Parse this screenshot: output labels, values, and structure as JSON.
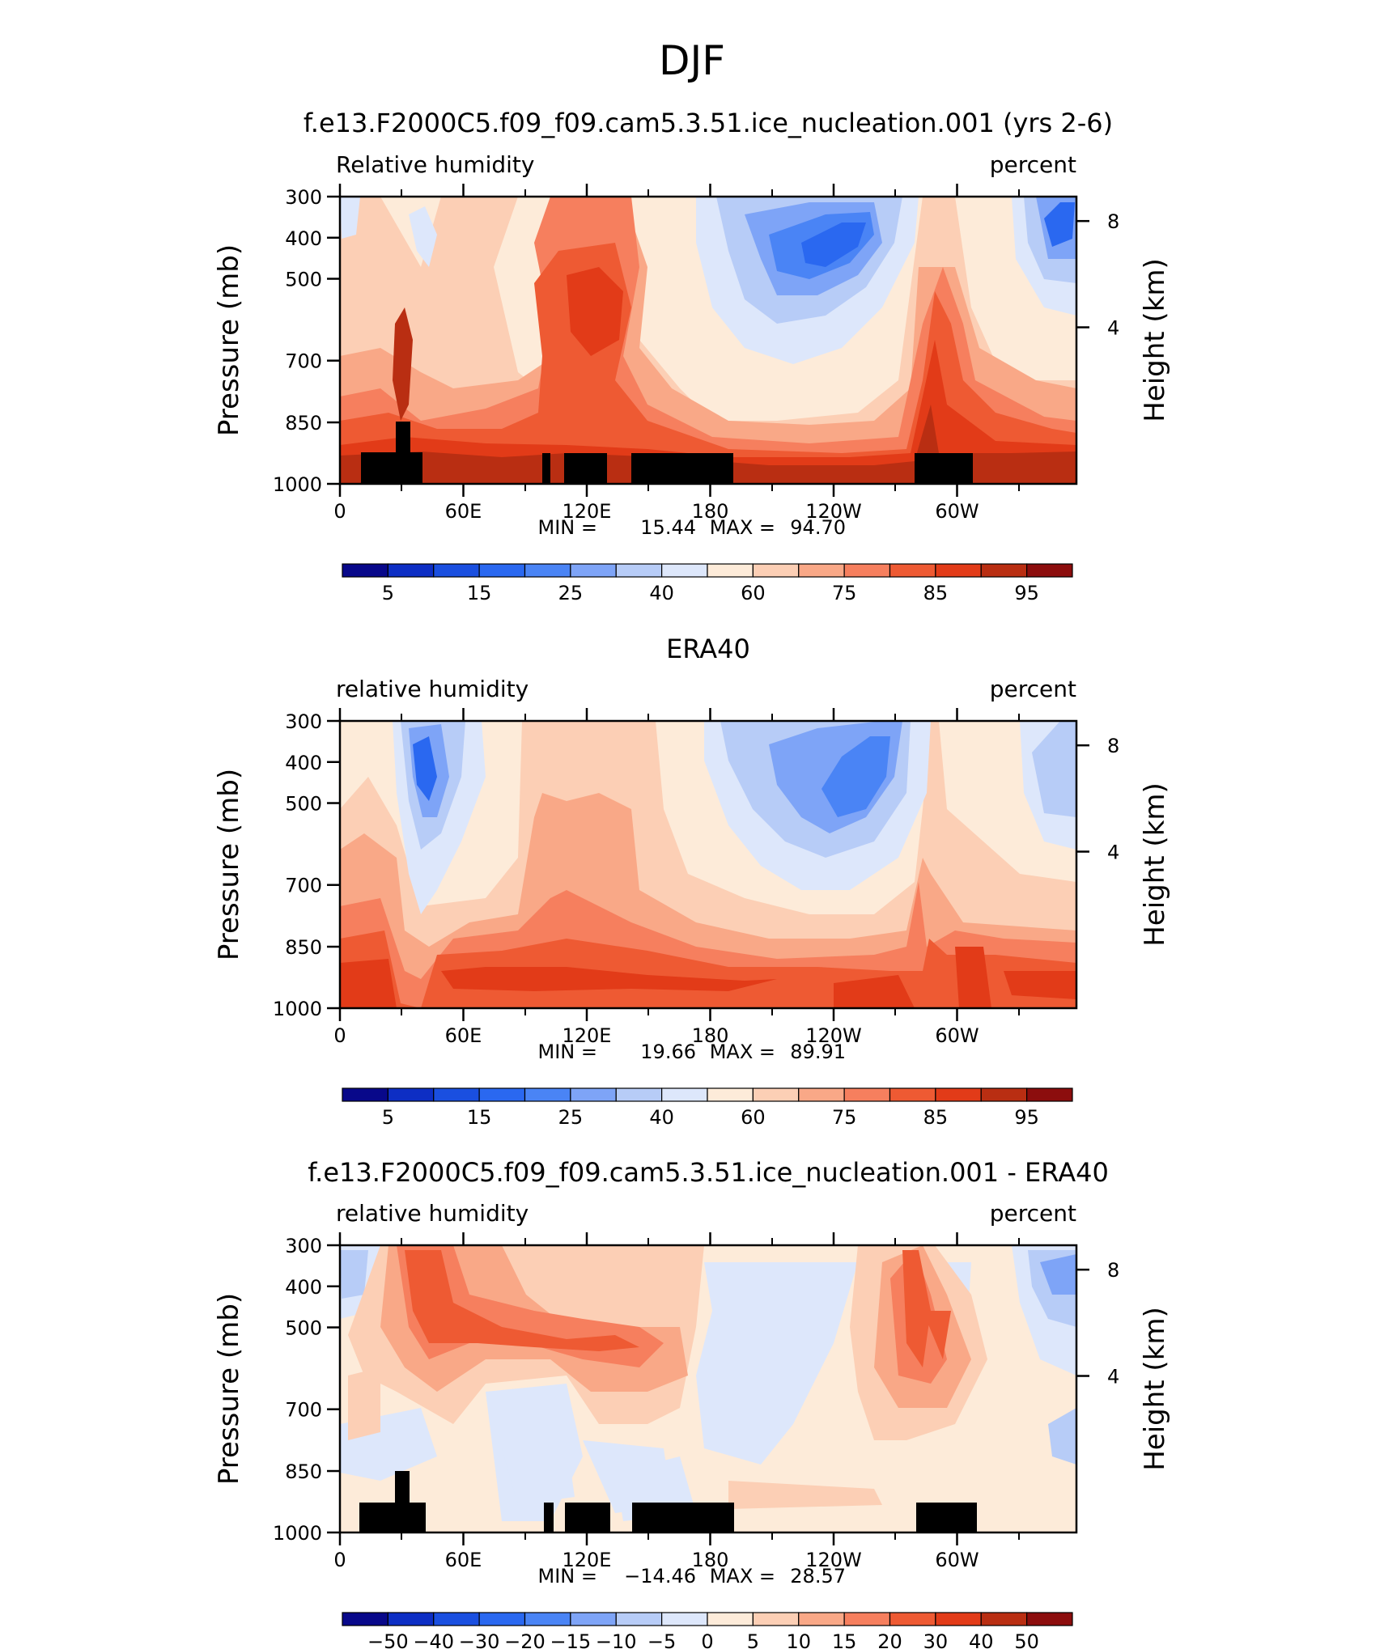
{
  "suptitle": "DJF",
  "colors": {
    "abs_levels": [
      "#08088a",
      "#0d2ec4",
      "#1a4fe0",
      "#2a68f0",
      "#4a84f5",
      "#7ea4f7",
      "#b7ccf7",
      "#dde7fb",
      "#fdebd9",
      "#fccfb5",
      "#f9a887",
      "#f67f5e",
      "#ee5a33",
      "#e23b18",
      "#b92e12",
      "#8c0d0d"
    ],
    "diff_levels": [
      "#08088a",
      "#0d2ec4",
      "#1a4fe0",
      "#2a68f0",
      "#4a84f5",
      "#7ea4f7",
      "#b7ccf7",
      "#dde7fb",
      "#fdebd9",
      "#fccfb5",
      "#f9a887",
      "#f67f5e",
      "#ee5a33",
      "#e23b18",
      "#b92e12",
      "#8c0d0d"
    ],
    "land": "#000000"
  },
  "chart_data": [
    {
      "type": "heatmap",
      "title": "f.e13.F2000C5.f09_f09.cam5.3.51.ice_nucleation.001 (yrs 2-6)",
      "left_label": "Relative humidity",
      "right_label": "percent",
      "ylabel": "Pressure (mb)",
      "y2label": "Height (km)",
      "x_ticks": [
        "0",
        "60E",
        "120E",
        "180",
        "120W",
        "60W"
      ],
      "y_ticks": [
        "300",
        "400",
        "500",
        "700",
        "850",
        "1000"
      ],
      "y2_ticks": [
        "8",
        "4"
      ],
      "stats": {
        "min_label": "MIN =",
        "min": "15.44",
        "max_label": "MAX =",
        "max": "94.70"
      },
      "colorbar_labels": [
        "5",
        "15",
        "25",
        "40",
        "60",
        "75",
        "85",
        "95"
      ],
      "colorbar_levels": 16,
      "land_mask": true
    },
    {
      "type": "heatmap",
      "title": "ERA40",
      "left_label": "relative humidity",
      "right_label": "percent",
      "ylabel": "Pressure (mb)",
      "y2label": "Height (km)",
      "x_ticks": [
        "0",
        "60E",
        "120E",
        "180",
        "120W",
        "60W"
      ],
      "y_ticks": [
        "300",
        "400",
        "500",
        "700",
        "850",
        "1000"
      ],
      "y2_ticks": [
        "8",
        "4"
      ],
      "stats": {
        "min_label": "MIN =",
        "min": "19.66",
        "max_label": "MAX =",
        "max": "89.91"
      },
      "colorbar_labels": [
        "5",
        "15",
        "25",
        "40",
        "60",
        "75",
        "85",
        "95"
      ],
      "colorbar_levels": 16,
      "land_mask": false
    },
    {
      "type": "heatmap",
      "title": "f.e13.F2000C5.f09_f09.cam5.3.51.ice_nucleation.001 - ERA40",
      "left_label": "relative humidity",
      "right_label": "percent",
      "ylabel": "Pressure (mb)",
      "y2label": "Height (km)",
      "x_ticks": [
        "0",
        "60E",
        "120E",
        "180",
        "120W",
        "60W"
      ],
      "y_ticks": [
        "300",
        "400",
        "500",
        "700",
        "850",
        "1000"
      ],
      "y2_ticks": [
        "8",
        "4"
      ],
      "stats": {
        "min_label": "MIN =",
        "min": "−14.46",
        "max_label": "MAX =",
        "max": "28.57"
      },
      "colorbar_labels": [
        "−50",
        "−40",
        "−30",
        "−20",
        "−15",
        "−10",
        "−5",
        "0",
        "5",
        "10",
        "15",
        "20",
        "30",
        "40",
        "50"
      ],
      "colorbar_levels": 16,
      "land_mask": true
    }
  ]
}
